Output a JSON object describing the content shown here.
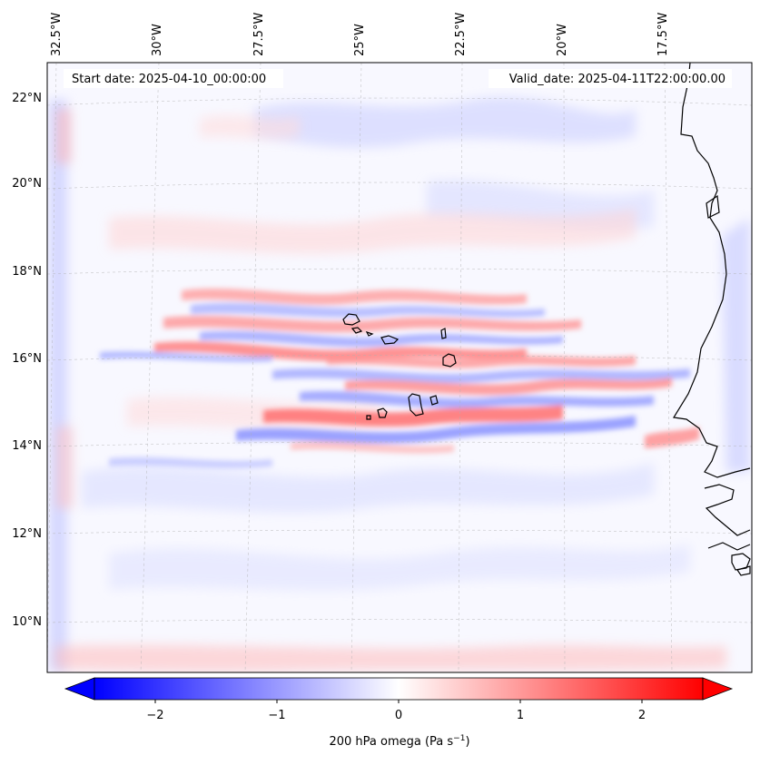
{
  "map": {
    "start_label": "Start date: 2025-04-10_00:00:00",
    "valid_label": "Valid_date: 2025-04-11T22:00:00.00",
    "lon_labels": [
      "32.5°W",
      "30°W",
      "27.5°W",
      "25°W",
      "22.5°W",
      "20°W",
      "17.5°W"
    ],
    "lat_labels": [
      "22°N",
      "20°N",
      "18°N",
      "16°N",
      "14°N",
      "12°N",
      "10°N"
    ],
    "colors": {
      "negative": "#0000ff",
      "neutral": "#ffffff",
      "positive": "#ff0000",
      "coast": "#000000"
    }
  },
  "colorbar": {
    "label": "200 hPa omega (Pa s",
    "label_sup": "−1",
    "label_end": ")",
    "range": [
      -2.5,
      2.5
    ],
    "ticks": [
      {
        "value": -2,
        "text": "−2"
      },
      {
        "value": -1,
        "text": "−1"
      },
      {
        "value": 0,
        "text": "0"
      },
      {
        "value": 1,
        "text": "1"
      },
      {
        "value": 2,
        "text": "2"
      }
    ]
  }
}
